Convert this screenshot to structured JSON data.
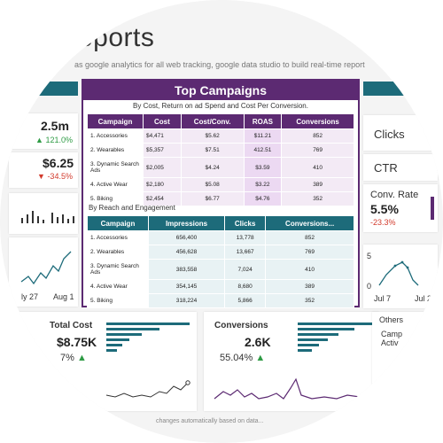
{
  "page": {
    "title": "eports",
    "subtitle": "as google analytics for all web tracking, google data studio to build real-time report"
  },
  "left_kpis": [
    {
      "value": "2.5m",
      "change": "121.0%",
      "direction": "up",
      "arrow": "▲"
    },
    {
      "value": "$6.25",
      "change": "-34.5%",
      "direction": "down",
      "arrow": "▼"
    }
  ],
  "left_axis": {
    "x_labels": [
      "ly 27",
      "Aug 1"
    ]
  },
  "right_kpis": [
    {
      "label": "Clicks"
    },
    {
      "label": "CTR"
    },
    {
      "label": "Conv. Rate",
      "value": "5.5%",
      "change": "-23.3%"
    }
  ],
  "right_chart": {
    "y_labels": [
      "5",
      "0"
    ],
    "x_labels": [
      "Jul 7",
      "Jul 2"
    ]
  },
  "top_campaigns": {
    "title": "Top Campaigns",
    "subtitle": "By Cost, Return on ad Spend and Cost Per Conversion.",
    "table1": {
      "headers": [
        "Campaign",
        "Cost",
        "Cost/Conv.",
        "ROAS",
        "Conversions"
      ],
      "rows": [
        [
          "1. Accessories",
          "$4,471",
          "$5.62",
          "$11.21",
          "852"
        ],
        [
          "2. Wearables",
          "$5,357",
          "$7.51",
          "412.51",
          "769"
        ],
        [
          "3. Dynamic Search Ads",
          "$2,005",
          "$4.24",
          "$3.59",
          "410"
        ],
        [
          "4. Active Wear",
          "$2,180",
          "$5.08",
          "$3.22",
          "389"
        ],
        [
          "5. Biking",
          "$2,454",
          "$6.77",
          "$4.76",
          "352"
        ]
      ]
    },
    "section2": "By Reach and Engagement",
    "table2": {
      "headers": [
        "Campaign",
        "Impressions",
        "Clicks",
        "Conversions..."
      ],
      "rows": [
        [
          "1. Accessories",
          "656,400",
          "13,778",
          "852"
        ],
        [
          "2. Wearables",
          "456,628",
          "13,667",
          "769"
        ],
        [
          "3. Dynamic Search Ads",
          "383,558",
          "7,024",
          "410"
        ],
        [
          "4. Active Wear",
          "354,145",
          "8,680",
          "389"
        ],
        [
          "5. Biking",
          "318,224",
          "5,866",
          "352"
        ]
      ]
    }
  },
  "total_cost": {
    "title": "Total Cost",
    "value": "$8.75K",
    "change": "7%"
  },
  "conversions": {
    "title": "Conversions",
    "value": "2.6K",
    "change": "55.04%"
  },
  "others": {
    "title": "Others",
    "lines": [
      "Camp",
      "Activ"
    ]
  },
  "footer": {
    "note": "changes automatically based on data..."
  },
  "colors": {
    "purple": "#5c2a72",
    "teal": "#1d6b7a",
    "green": "#2e9b44",
    "red": "#d23a2c"
  },
  "icons": [
    "up-arrow-icon",
    "down-arrow-icon"
  ]
}
